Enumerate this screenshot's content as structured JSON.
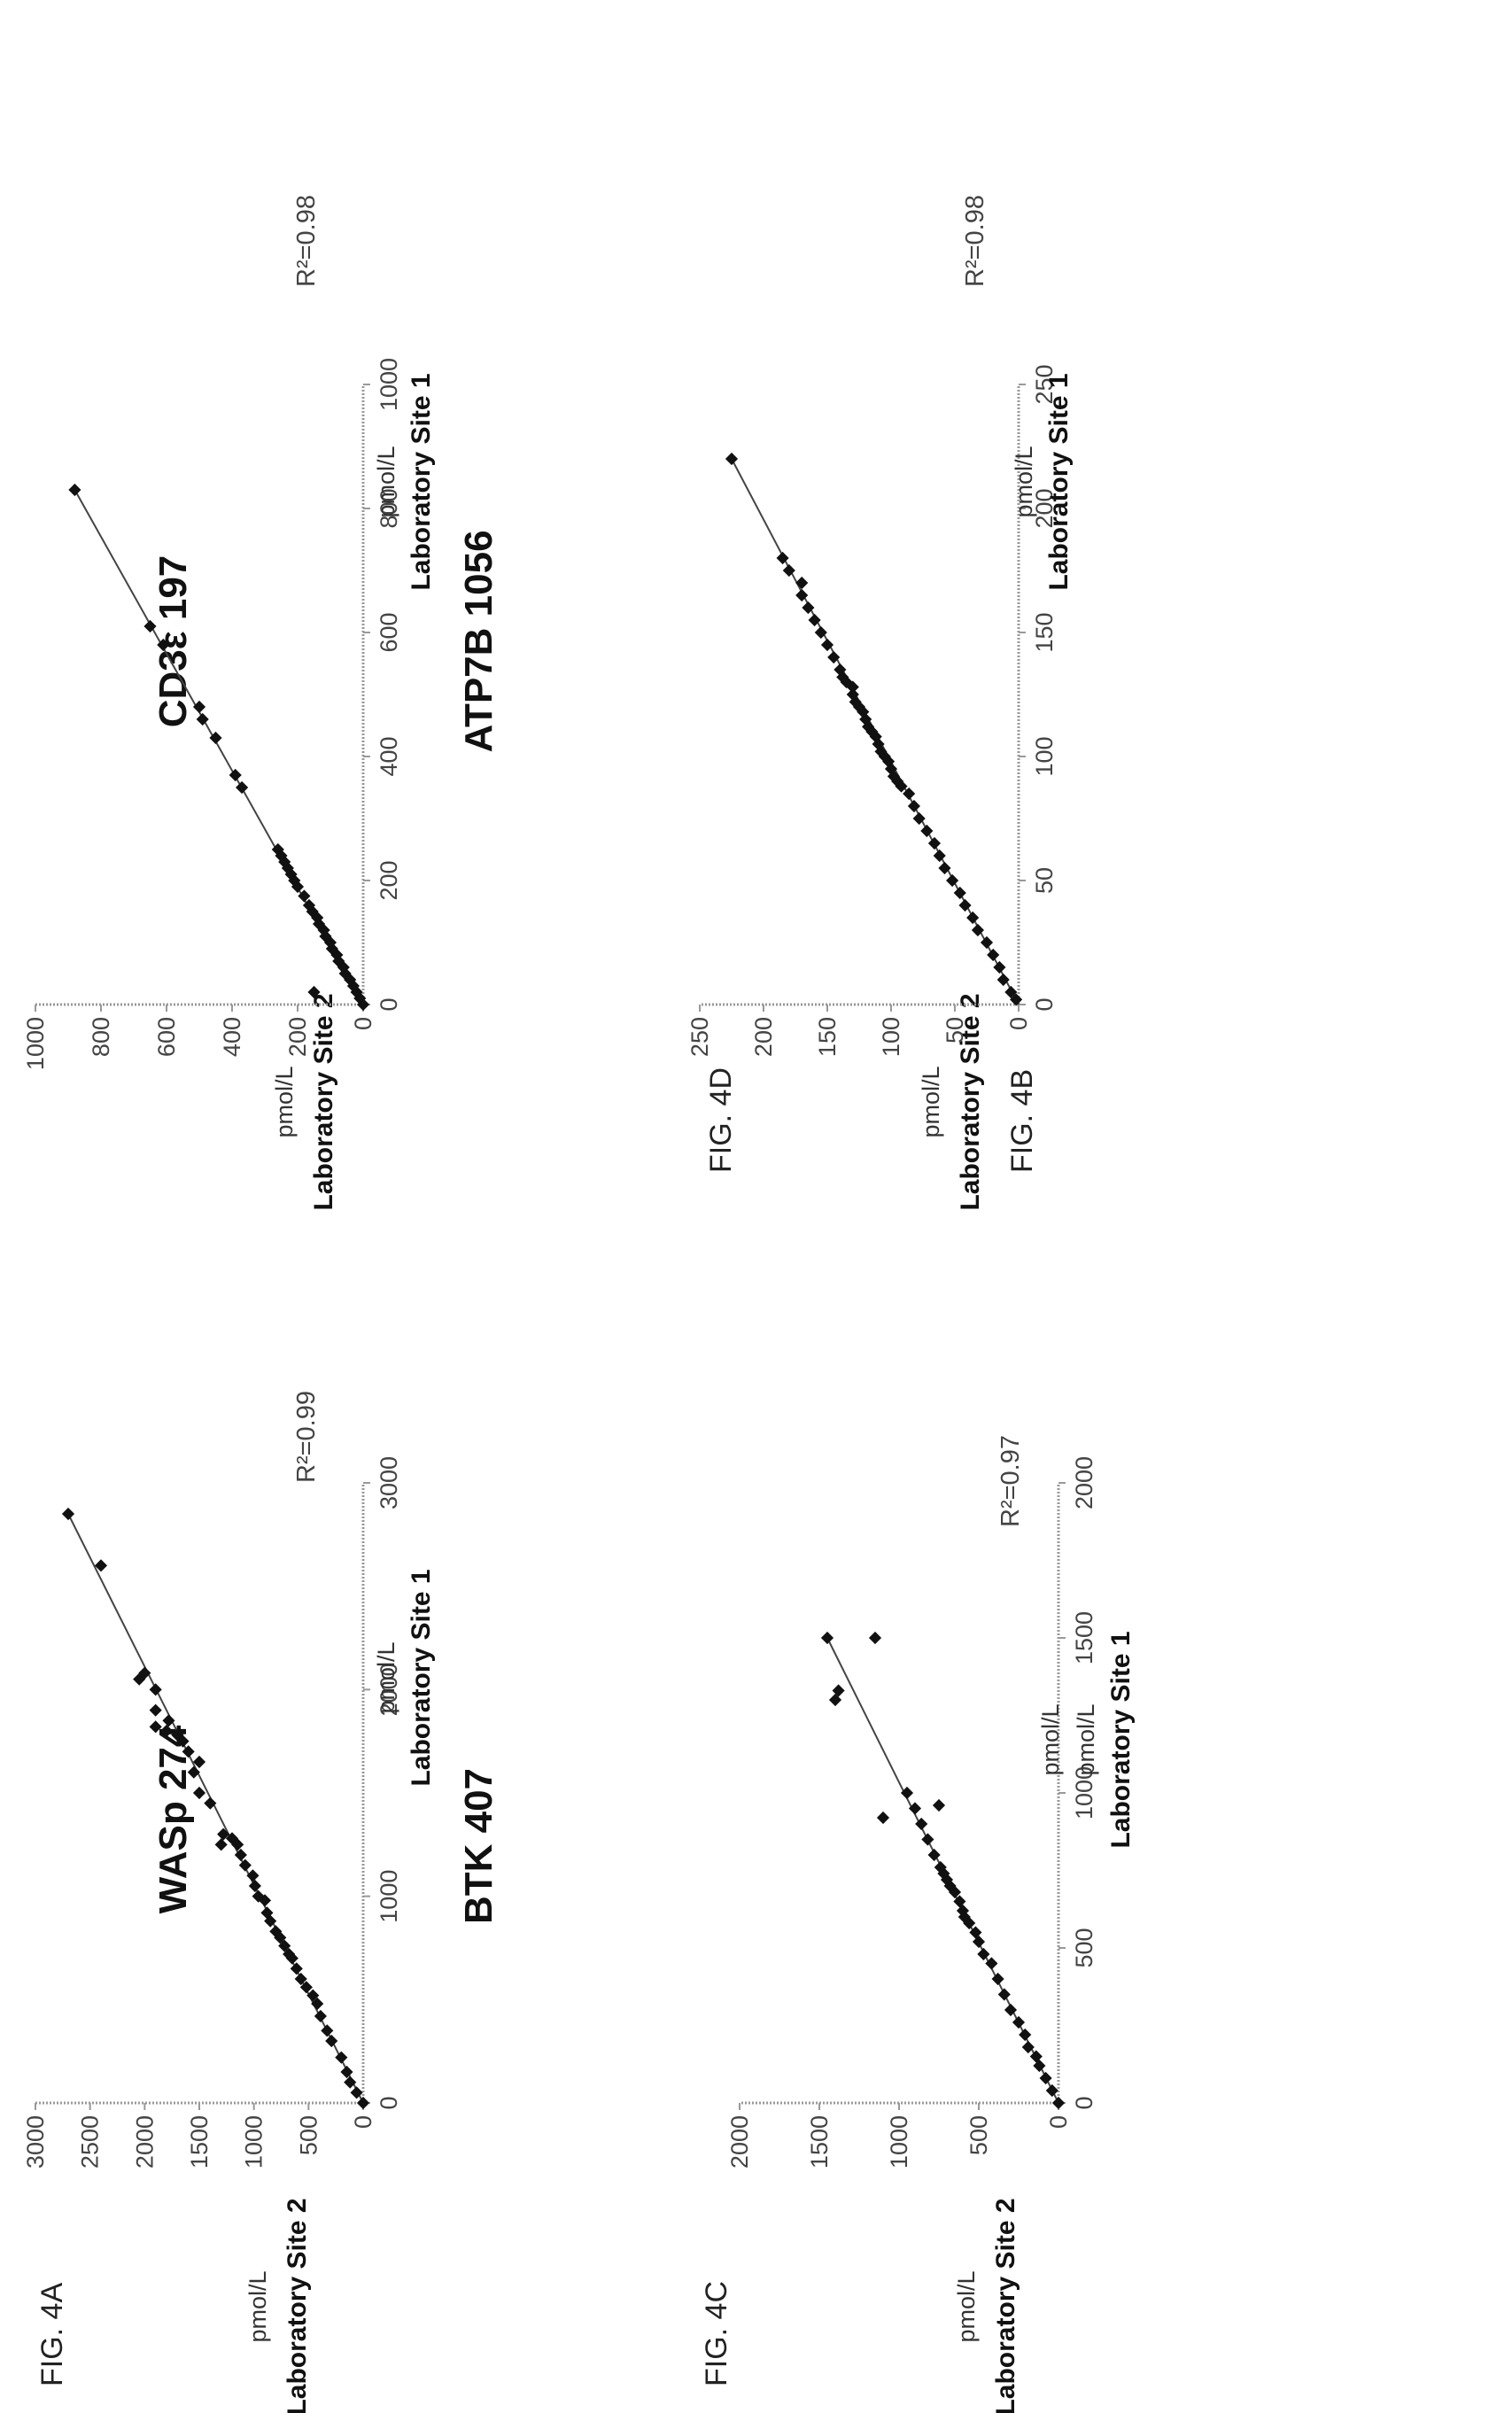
{
  "figure_labels": {
    "a": "FIG. 4A",
    "b": "FIG. 4B",
    "c": "FIG. 4C",
    "d": "FIG. 4D"
  },
  "chart_data": [
    {
      "id": "a",
      "type": "scatter",
      "title": "WASp 274",
      "xlabel_unit": "pmol/L",
      "xlabel": "Laboratory Site 1",
      "ylabel_unit": "pmol/L",
      "ylabel": "Laboratory Site 2",
      "xlim": [
        0,
        3000
      ],
      "ylim": [
        0,
        3000
      ],
      "xticks": [
        0,
        1000,
        2000,
        3000
      ],
      "yticks": [
        0,
        500,
        1000,
        1500,
        2000,
        2500,
        3000
      ],
      "annotation": "R²=0.99",
      "fit_line": [
        [
          0,
          0
        ],
        [
          2850,
          2700
        ]
      ],
      "points": [
        [
          0,
          0
        ],
        [
          50,
          60
        ],
        [
          100,
          120
        ],
        [
          150,
          150
        ],
        [
          220,
          200
        ],
        [
          300,
          290
        ],
        [
          350,
          330
        ],
        [
          420,
          390
        ],
        [
          480,
          420
        ],
        [
          520,
          460
        ],
        [
          560,
          520
        ],
        [
          600,
          570
        ],
        [
          650,
          610
        ],
        [
          700,
          650
        ],
        [
          720,
          680
        ],
        [
          760,
          720
        ],
        [
          800,
          760
        ],
        [
          830,
          800
        ],
        [
          880,
          850
        ],
        [
          920,
          880
        ],
        [
          980,
          900
        ],
        [
          1000,
          960
        ],
        [
          1050,
          990
        ],
        [
          1100,
          1010
        ],
        [
          1150,
          1080
        ],
        [
          1200,
          1120
        ],
        [
          1250,
          1150
        ],
        [
          1280,
          1200
        ],
        [
          1300,
          1280
        ],
        [
          1250,
          1300
        ],
        [
          1450,
          1400
        ],
        [
          1500,
          1500
        ],
        [
          1600,
          1550
        ],
        [
          1650,
          1500
        ],
        [
          1700,
          1600
        ],
        [
          1750,
          1650
        ],
        [
          1780,
          1700
        ],
        [
          1800,
          1800
        ],
        [
          1850,
          1780
        ],
        [
          1820,
          1900
        ],
        [
          1900,
          1900
        ],
        [
          2000,
          1900
        ],
        [
          2050,
          2050
        ],
        [
          2080,
          2000
        ],
        [
          2600,
          2400
        ],
        [
          2850,
          2700
        ]
      ]
    },
    {
      "id": "b",
      "type": "scatter",
      "title": "CD3ε 197",
      "xlabel_unit": "pmol/L",
      "xlabel": "Laboratory Site 1",
      "ylabel_unit": "pmol/L",
      "ylabel": "Laboratory Site 2",
      "xlim": [
        0,
        1000
      ],
      "ylim": [
        0,
        1000
      ],
      "xticks": [
        0,
        200,
        400,
        600,
        800,
        1000
      ],
      "yticks": [
        0,
        200,
        400,
        600,
        800,
        1000
      ],
      "annotation": "R²=0.98",
      "fit_line": [
        [
          0,
          0
        ],
        [
          830,
          880
        ]
      ],
      "points": [
        [
          0,
          0
        ],
        [
          10,
          10
        ],
        [
          20,
          20
        ],
        [
          30,
          30
        ],
        [
          40,
          40
        ],
        [
          50,
          55
        ],
        [
          60,
          60
        ],
        [
          70,
          75
        ],
        [
          80,
          80
        ],
        [
          90,
          95
        ],
        [
          100,
          100
        ],
        [
          110,
          115
        ],
        [
          120,
          120
        ],
        [
          130,
          135
        ],
        [
          140,
          140
        ],
        [
          150,
          155
        ],
        [
          160,
          165
        ],
        [
          175,
          180
        ],
        [
          190,
          200
        ],
        [
          200,
          210
        ],
        [
          210,
          220
        ],
        [
          220,
          230
        ],
        [
          230,
          240
        ],
        [
          240,
          250
        ],
        [
          250,
          260
        ],
        [
          20,
          150
        ],
        [
          350,
          370
        ],
        [
          370,
          390
        ],
        [
          430,
          450
        ],
        [
          460,
          490
        ],
        [
          480,
          500
        ],
        [
          580,
          610
        ],
        [
          610,
          650
        ],
        [
          830,
          880
        ]
      ]
    },
    {
      "id": "c",
      "type": "scatter",
      "title": "BTK 407",
      "xlabel_unit": "pmol/L",
      "xlabel": "Laboratory Site 1",
      "xlabel_extra": "pmol/L",
      "ylabel_unit": "pmol/L",
      "ylabel": "Laboratory Site 2",
      "xlim": [
        0,
        2000
      ],
      "ylim": [
        0,
        2000
      ],
      "xticks": [
        0,
        500,
        1000,
        1500,
        2000
      ],
      "yticks": [
        0,
        500,
        1000,
        1500,
        2000
      ],
      "annotation": "R²=0.97",
      "fit_line": [
        [
          0,
          0
        ],
        [
          1500,
          1450
        ]
      ],
      "points": [
        [
          0,
          0
        ],
        [
          40,
          40
        ],
        [
          80,
          80
        ],
        [
          120,
          120
        ],
        [
          150,
          140
        ],
        [
          180,
          190
        ],
        [
          220,
          210
        ],
        [
          260,
          250
        ],
        [
          300,
          300
        ],
        [
          350,
          340
        ],
        [
          400,
          380
        ],
        [
          450,
          420
        ],
        [
          480,
          470
        ],
        [
          520,
          500
        ],
        [
          550,
          520
        ],
        [
          580,
          560
        ],
        [
          600,
          590
        ],
        [
          620,
          600
        ],
        [
          650,
          620
        ],
        [
          680,
          650
        ],
        [
          700,
          680
        ],
        [
          720,
          700
        ],
        [
          740,
          720
        ],
        [
          760,
          740
        ],
        [
          800,
          780
        ],
        [
          850,
          820
        ],
        [
          900,
          860
        ],
        [
          950,
          900
        ],
        [
          1000,
          950
        ],
        [
          960,
          750
        ],
        [
          920,
          1100
        ],
        [
          1300,
          1400
        ],
        [
          1330,
          1380
        ],
        [
          1500,
          1150
        ],
        [
          1500,
          1450
        ]
      ]
    },
    {
      "id": "d",
      "type": "scatter",
      "title": "ATP7B 1056",
      "xlabel_unit": "pmol/L",
      "xlabel": "Laboratory Site 1",
      "ylabel_unit": "pmol/L",
      "ylabel": "Laboratory Site 2",
      "xlim": [
        0,
        250
      ],
      "ylim": [
        0,
        250
      ],
      "xticks": [
        0,
        50,
        100,
        150,
        200,
        250
      ],
      "yticks": [
        0,
        50,
        100,
        150,
        200,
        250
      ],
      "annotation": "R²=0.98",
      "fit_line": [
        [
          0,
          0
        ],
        [
          220,
          225
        ]
      ],
      "points": [
        [
          2,
          2
        ],
        [
          5,
          6
        ],
        [
          10,
          12
        ],
        [
          15,
          15
        ],
        [
          20,
          20
        ],
        [
          25,
          25
        ],
        [
          30,
          32
        ],
        [
          35,
          36
        ],
        [
          40,
          42
        ],
        [
          45,
          46
        ],
        [
          50,
          52
        ],
        [
          55,
          58
        ],
        [
          60,
          62
        ],
        [
          65,
          66
        ],
        [
          70,
          72
        ],
        [
          75,
          78
        ],
        [
          80,
          82
        ],
        [
          85,
          86
        ],
        [
          88,
          92
        ],
        [
          90,
          95
        ],
        [
          92,
          98
        ],
        [
          95,
          100
        ],
        [
          98,
          102
        ],
        [
          100,
          105
        ],
        [
          102,
          108
        ],
        [
          105,
          110
        ],
        [
          108,
          112
        ],
        [
          110,
          115
        ],
        [
          112,
          118
        ],
        [
          115,
          120
        ],
        [
          118,
          122
        ],
        [
          120,
          125
        ],
        [
          122,
          128
        ],
        [
          125,
          130
        ],
        [
          128,
          130
        ],
        [
          130,
          135
        ],
        [
          132,
          138
        ],
        [
          135,
          140
        ],
        [
          140,
          145
        ],
        [
          145,
          150
        ],
        [
          150,
          155
        ],
        [
          155,
          160
        ],
        [
          160,
          165
        ],
        [
          165,
          170
        ],
        [
          170,
          170
        ],
        [
          175,
          180
        ],
        [
          180,
          185
        ],
        [
          220,
          225
        ]
      ]
    }
  ]
}
